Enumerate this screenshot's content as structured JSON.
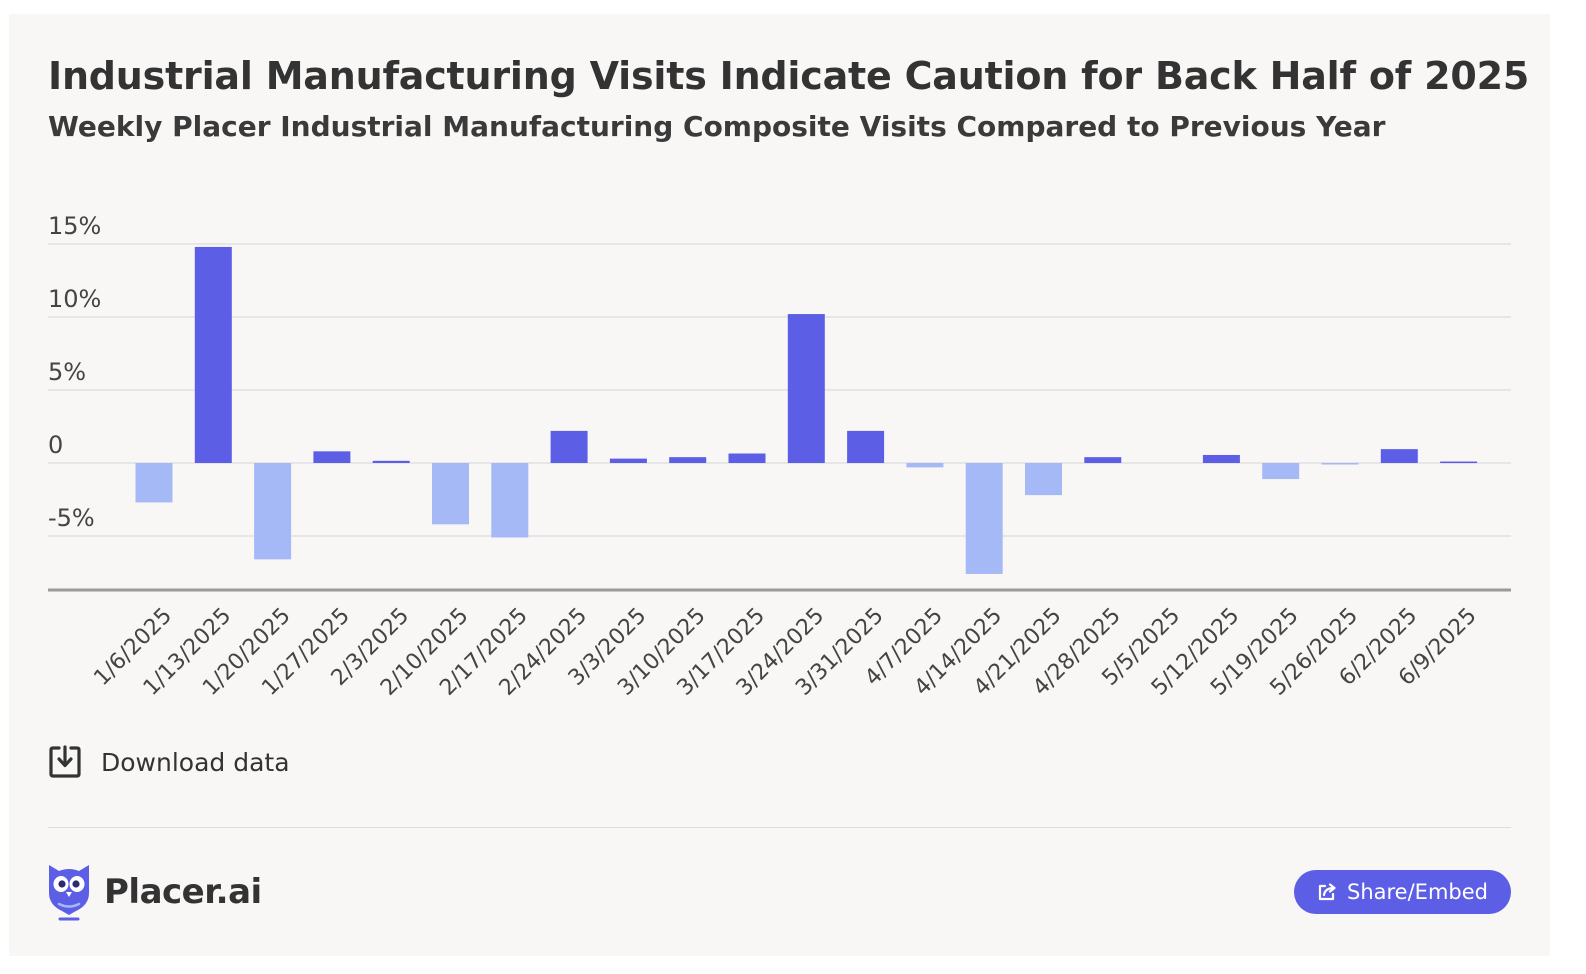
{
  "header": {
    "title": "Industrial Manufacturing Visits Indicate Caution for Back Half of 2025",
    "subtitle": "Weekly Placer Industrial Manufacturing Composite Visits Compared to Previous Year"
  },
  "chart_data": {
    "type": "bar",
    "title": "Industrial Manufacturing Visits Indicate Caution for Back Half of 2025",
    "subtitle": "Weekly Placer Industrial Manufacturing Composite Visits Compared to Previous Year",
    "xlabel": "",
    "ylabel": "",
    "ylim": [
      -8.7,
      15
    ],
    "yticks": [
      15,
      10,
      5,
      0,
      -5
    ],
    "ytick_labels": [
      "15%",
      "10%",
      "5%",
      "0",
      "-5%"
    ],
    "grid": true,
    "categories": [
      "1/6/2025",
      "1/13/2025",
      "1/20/2025",
      "1/27/2025",
      "2/3/2025",
      "2/10/2025",
      "2/17/2025",
      "2/24/2025",
      "3/3/2025",
      "3/10/2025",
      "3/17/2025",
      "3/24/2025",
      "3/31/2025",
      "4/7/2025",
      "4/14/2025",
      "4/21/2025",
      "4/28/2025",
      "5/5/2025",
      "5/12/2025",
      "5/19/2025",
      "5/26/2025",
      "6/2/2025",
      "6/9/2025"
    ],
    "values": [
      -2.7,
      14.8,
      -6.6,
      0.8,
      0.15,
      -4.2,
      -5.1,
      2.2,
      0.3,
      0.4,
      0.65,
      10.2,
      2.2,
      -0.3,
      -7.6,
      -2.2,
      0.4,
      0.0,
      0.55,
      -1.1,
      -0.1,
      0.95,
      0.1
    ],
    "colors": {
      "positive": "#5c5fe6",
      "negative": "#a6b9f7"
    }
  },
  "actions": {
    "download_label": "Download data",
    "share_label": "Share/Embed"
  },
  "brand": {
    "name": "Placer.ai"
  },
  "icons": {
    "download": "download-icon",
    "share": "share-icon",
    "logo": "placer-owl-logo"
  },
  "colors": {
    "card_background": "#f8f7f6",
    "accent": "#5c5fe6",
    "text": "#333333"
  }
}
